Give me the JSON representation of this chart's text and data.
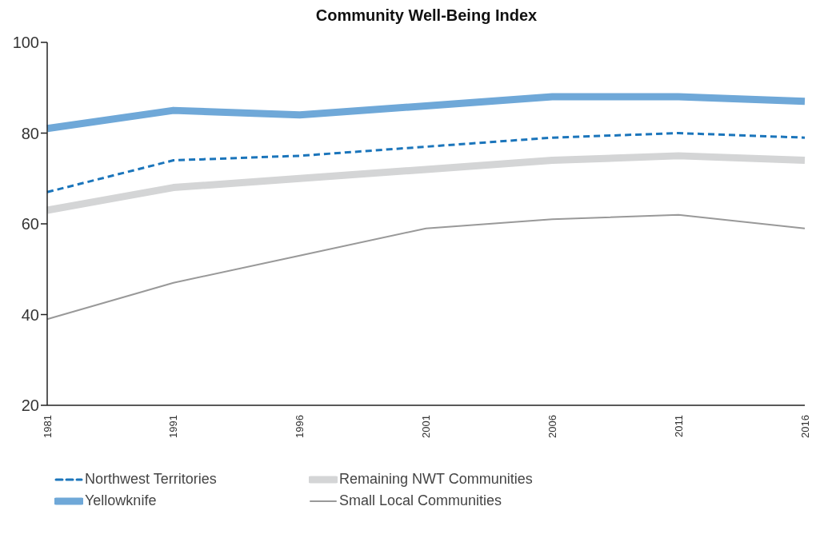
{
  "chart_data": {
    "type": "line",
    "title": "Community Well-Being Index",
    "categories": [
      "1981",
      "1991",
      "1996",
      "2001",
      "2006",
      "2011",
      "2016"
    ],
    "series": [
      {
        "name": "Northwest Territories",
        "color": "#1b75bb",
        "line_style": "dashed",
        "values": [
          67,
          74,
          75,
          77,
          79,
          80,
          79
        ]
      },
      {
        "name": "Remaining NWT Communities",
        "color": "#d4d5d6",
        "values": [
          63,
          68,
          70,
          72,
          74,
          75,
          74
        ]
      },
      {
        "name": "Yellowknife",
        "color": "#6fa8d8",
        "values": [
          81,
          85,
          84,
          86,
          88,
          88,
          87
        ]
      },
      {
        "name": "Small Local Communities",
        "color": "#999999",
        "values": [
          39,
          47,
          53,
          59,
          61,
          62,
          59
        ]
      }
    ],
    "ylim": [
      20,
      100
    ],
    "yticks": [
      20,
      40,
      60,
      80,
      100
    ],
    "grid": false,
    "legend": "bottom",
    "marker": "none",
    "line_style": "solid"
  }
}
